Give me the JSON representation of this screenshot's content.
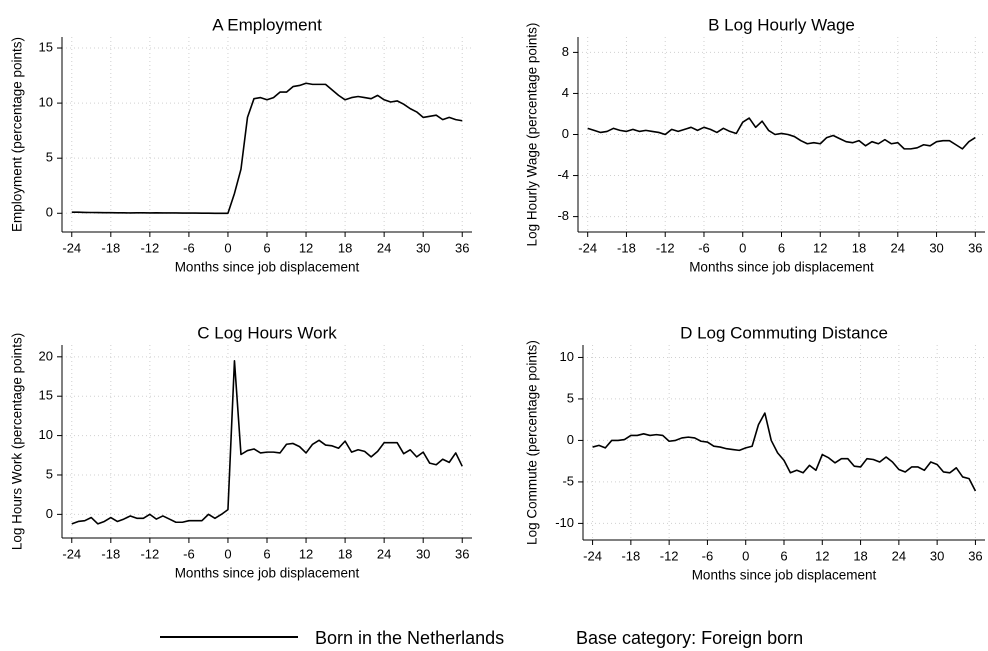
{
  "chart_data": [
    {
      "type": "line",
      "title": "A Employment",
      "x_label": "Months since job displacement",
      "y_label": "Employment (percentage points)",
      "x": [
        -24,
        -23,
        -22,
        -21,
        -20,
        -19,
        -18,
        -17,
        -16,
        -15,
        -14,
        -13,
        -12,
        -11,
        -10,
        -9,
        -8,
        -7,
        -6,
        -5,
        -4,
        -3,
        -2,
        -1,
        0,
        1,
        2,
        3,
        4,
        5,
        6,
        7,
        8,
        9,
        10,
        11,
        12,
        13,
        14,
        15,
        16,
        17,
        18,
        19,
        20,
        21,
        22,
        23,
        24,
        25,
        26,
        27,
        28,
        29,
        30,
        31,
        32,
        33,
        34,
        35,
        36
      ],
      "series": [
        {
          "name": "Born in the Netherlands",
          "color": "#000000",
          "values": [
            0.1,
            0.1,
            0.08,
            0.07,
            0.06,
            0.05,
            0.05,
            0.04,
            0.04,
            0.03,
            0.04,
            0.04,
            0.03,
            0.04,
            0.03,
            0.03,
            0.03,
            0.02,
            0.02,
            0.02,
            0.01,
            0.01,
            0.0,
            0.0,
            0.0,
            1.8,
            4.0,
            8.7,
            10.4,
            10.5,
            10.3,
            10.5,
            11.0,
            11.0,
            11.5,
            11.6,
            11.8,
            11.7,
            11.7,
            11.7,
            11.2,
            10.7,
            10.3,
            10.5,
            10.6,
            10.5,
            10.4,
            10.7,
            10.3,
            10.1,
            10.2,
            9.9,
            9.5,
            9.2,
            8.7,
            8.8,
            8.9,
            8.5,
            8.7,
            8.5,
            8.4
          ]
        }
      ],
      "xlim": [
        -25.5,
        37.5
      ],
      "ylim": [
        -1.7,
        16
      ],
      "xticks": [
        -24,
        -18,
        -12,
        -6,
        0,
        6,
        12,
        18,
        24,
        30,
        36
      ],
      "yticks": [
        0,
        5,
        10,
        15
      ],
      "grid": true
    },
    {
      "type": "line",
      "title": "B Log Hourly Wage",
      "x_label": "Months since job displacement",
      "y_label": "Log Hourly Wage (percentage points)",
      "x": [
        -24,
        -23,
        -22,
        -21,
        -20,
        -19,
        -18,
        -17,
        -16,
        -15,
        -14,
        -13,
        -12,
        -11,
        -10,
        -9,
        -8,
        -7,
        -6,
        -5,
        -4,
        -3,
        -2,
        -1,
        0,
        1,
        2,
        3,
        4,
        5,
        6,
        7,
        8,
        9,
        10,
        11,
        12,
        13,
        14,
        15,
        16,
        17,
        18,
        19,
        20,
        21,
        22,
        23,
        24,
        25,
        26,
        27,
        28,
        29,
        30,
        31,
        32,
        33,
        34,
        35,
        36
      ],
      "series": [
        {
          "color": "#000000",
          "values": [
            0.6,
            0.4,
            0.2,
            0.3,
            0.6,
            0.4,
            0.3,
            0.5,
            0.3,
            0.4,
            0.3,
            0.2,
            0.0,
            0.5,
            0.3,
            0.5,
            0.7,
            0.4,
            0.7,
            0.5,
            0.2,
            0.6,
            0.3,
            0.1,
            1.2,
            1.6,
            0.7,
            1.3,
            0.4,
            0.0,
            0.1,
            0.0,
            -0.2,
            -0.6,
            -0.9,
            -0.8,
            -0.9,
            -0.3,
            -0.1,
            -0.4,
            -0.7,
            -0.8,
            -0.6,
            -1.1,
            -0.7,
            -0.9,
            -0.5,
            -0.9,
            -0.8,
            -1.4,
            -1.4,
            -1.3,
            -1.0,
            -1.1,
            -0.7,
            -0.6,
            -0.6,
            -1.0,
            -1.4,
            -0.7,
            -0.3
          ]
        }
      ],
      "xlim": [
        -25.5,
        37.5
      ],
      "ylim": [
        -9.5,
        9.5
      ],
      "xticks": [
        -24,
        -18,
        -12,
        -6,
        0,
        6,
        12,
        18,
        24,
        30,
        36
      ],
      "yticks": [
        -8,
        -4,
        0,
        4,
        8
      ],
      "grid": true
    },
    {
      "type": "line",
      "title": "C Log Hours Work",
      "x_label": "Months since job displacement",
      "y_label": "Log Hours Work (percentage points)",
      "x": [
        -24,
        -23,
        -22,
        -21,
        -20,
        -19,
        -18,
        -17,
        -16,
        -15,
        -14,
        -13,
        -12,
        -11,
        -10,
        -9,
        -8,
        -7,
        -6,
        -5,
        -4,
        -3,
        -2,
        -1,
        0,
        1,
        2,
        3,
        4,
        5,
        6,
        7,
        8,
        9,
        10,
        11,
        12,
        13,
        14,
        15,
        16,
        17,
        18,
        19,
        20,
        21,
        22,
        23,
        24,
        25,
        26,
        27,
        28,
        29,
        30,
        31,
        32,
        33,
        34,
        35,
        36
      ],
      "series": [
        {
          "color": "#000000",
          "values": [
            -1.2,
            -0.9,
            -0.8,
            -0.4,
            -1.2,
            -0.9,
            -0.4,
            -0.9,
            -0.6,
            -0.2,
            -0.5,
            -0.5,
            0.0,
            -0.6,
            -0.2,
            -0.6,
            -1.0,
            -1.0,
            -0.8,
            -0.8,
            -0.8,
            0.0,
            -0.5,
            0.0,
            0.6,
            19.5,
            7.6,
            8.1,
            8.3,
            7.8,
            7.9,
            7.9,
            7.8,
            8.9,
            9.0,
            8.6,
            7.8,
            8.9,
            9.4,
            8.8,
            8.7,
            8.4,
            9.3,
            7.9,
            8.2,
            8.0,
            7.3,
            8.0,
            9.1,
            9.1,
            9.1,
            7.7,
            8.2,
            7.3,
            7.9,
            6.5,
            6.3,
            7.0,
            6.6,
            7.8,
            6.1
          ]
        }
      ],
      "xlim": [
        -25.5,
        37.5
      ],
      "ylim": [
        -3,
        21.5
      ],
      "xticks": [
        -24,
        -18,
        -12,
        -6,
        0,
        6,
        12,
        18,
        24,
        30,
        36
      ],
      "yticks": [
        0,
        5,
        10,
        15,
        20
      ],
      "grid": true
    },
    {
      "type": "line",
      "title": "D Log Commuting Distance",
      "x_label": "Months since job displacement",
      "y_label": "Log Commute (percentage points)",
      "x": [
        -24,
        -23,
        -22,
        -21,
        -20,
        -19,
        -18,
        -17,
        -16,
        -15,
        -14,
        -13,
        -12,
        -11,
        -10,
        -9,
        -8,
        -7,
        -6,
        -5,
        -4,
        -3,
        -2,
        -1,
        0,
        1,
        2,
        3,
        4,
        5,
        6,
        7,
        8,
        9,
        10,
        11,
        12,
        13,
        14,
        15,
        16,
        17,
        18,
        19,
        20,
        21,
        22,
        23,
        24,
        25,
        26,
        27,
        28,
        29,
        30,
        31,
        32,
        33,
        34,
        35,
        36
      ],
      "series": [
        {
          "color": "#000000",
          "values": [
            -0.8,
            -0.6,
            -0.9,
            0.0,
            0.0,
            0.1,
            0.6,
            0.6,
            0.8,
            0.6,
            0.7,
            0.6,
            -0.1,
            0.0,
            0.3,
            0.4,
            0.3,
            -0.1,
            -0.2,
            -0.7,
            -0.8,
            -1.0,
            -1.1,
            -1.2,
            -0.9,
            -0.7,
            1.9,
            3.3,
            0.0,
            -1.5,
            -2.4,
            -3.9,
            -3.6,
            -3.9,
            -3.0,
            -3.6,
            -1.7,
            -2.1,
            -2.7,
            -2.2,
            -2.2,
            -3.1,
            -3.2,
            -2.2,
            -2.3,
            -2.6,
            -2.0,
            -2.6,
            -3.5,
            -3.8,
            -3.2,
            -3.2,
            -3.6,
            -2.6,
            -2.9,
            -3.8,
            -3.9,
            -3.3,
            -4.4,
            -4.6,
            -6.1
          ]
        }
      ],
      "xlim": [
        -25.5,
        37.5
      ],
      "ylim": [
        -12,
        11.5
      ],
      "xticks": [
        -24,
        -18,
        -12,
        -6,
        0,
        6,
        12,
        18,
        24,
        30,
        36
      ],
      "yticks": [
        -10,
        -5,
        0,
        5,
        10
      ],
      "grid": true
    }
  ],
  "note": "Base category: Foreign born"
}
